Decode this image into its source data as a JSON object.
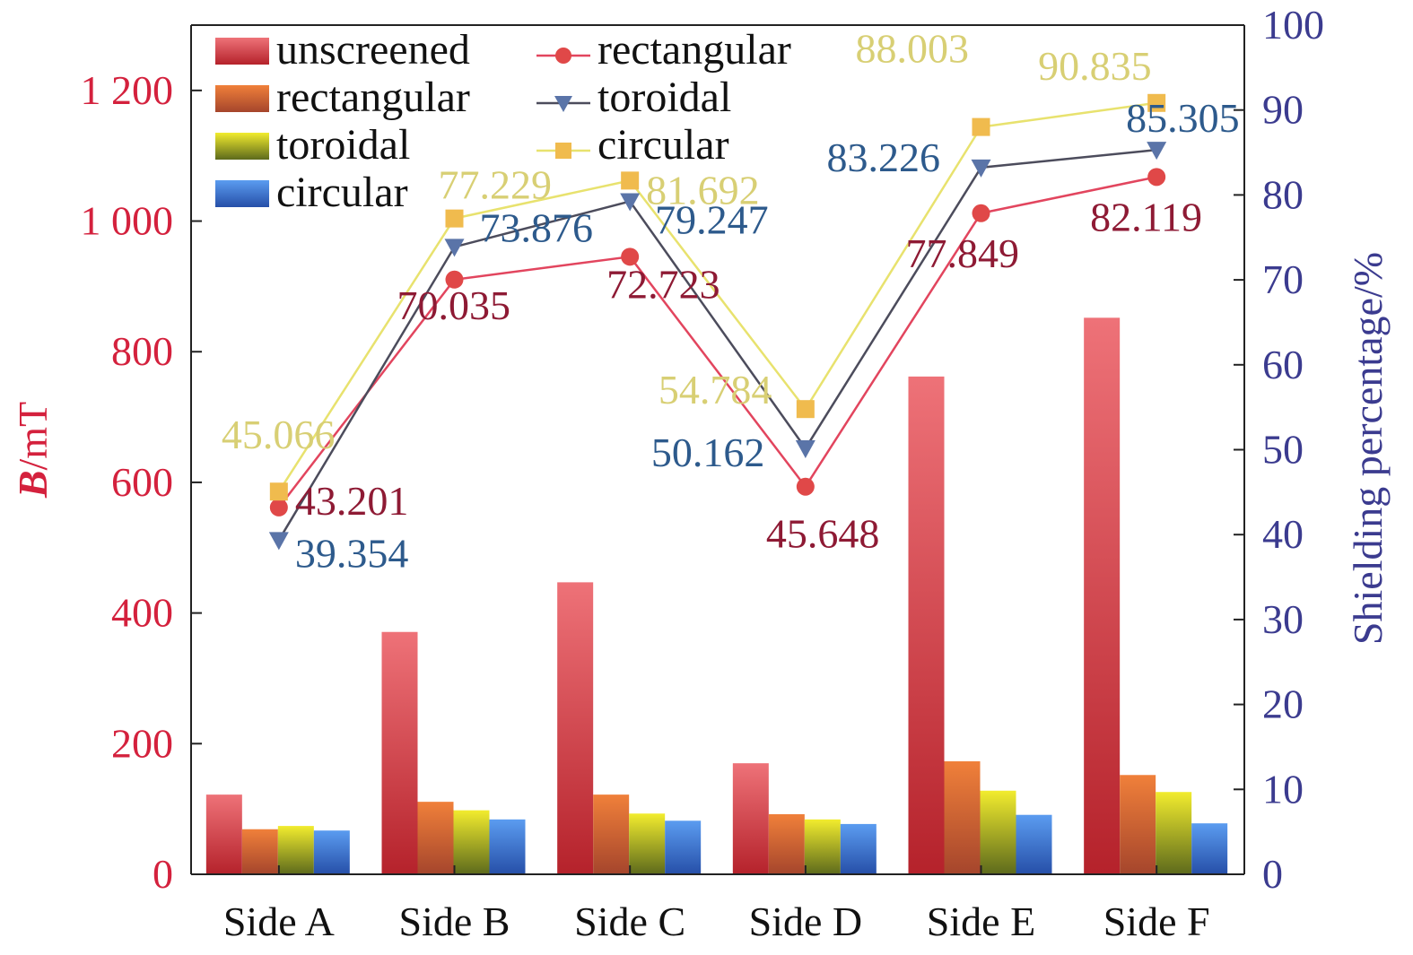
{
  "chart_data": {
    "type": "bar+line",
    "categories": [
      "Side A",
      "Side B",
      "Side C",
      "Side D",
      "Side E",
      "Side F"
    ],
    "y_left": {
      "label_bold": "B",
      "label_rest": "/mT",
      "ylim": [
        0,
        1300
      ],
      "ticks": [
        0,
        200,
        400,
        600,
        800,
        1000,
        1200
      ],
      "tick_labels": [
        "0",
        "200",
        "400",
        "600",
        "800",
        "1 000",
        "1 200"
      ],
      "color": "#d4213d"
    },
    "y_right": {
      "label": "Shielding percentage/%",
      "ylim": [
        0,
        100
      ],
      "ticks": [
        0,
        10,
        20,
        30,
        40,
        50,
        60,
        70,
        80,
        90,
        100
      ],
      "tick_labels": [
        "0",
        "10",
        "20",
        "30",
        "40",
        "50",
        "60",
        "70",
        "80",
        "90",
        "100"
      ],
      "color": "#3b3b8f"
    },
    "bar_series": [
      {
        "name": "unscreened",
        "values": [
          122,
          371,
          447,
          170,
          762,
          852
        ],
        "color_top": "#ee7278",
        "color_bottom": "#b5222b"
      },
      {
        "name": "rectangular",
        "values": [
          69,
          111,
          122,
          92,
          173,
          152
        ],
        "color_top": "#f0803a",
        "color_bottom": "#a5452c"
      },
      {
        "name": "toroidal",
        "values": [
          74,
          98,
          93,
          84,
          128,
          126
        ],
        "color_top": "#f2ec2e",
        "color_bottom": "#5d6a1c"
      },
      {
        "name": "circular",
        "values": [
          67,
          84,
          82,
          77,
          91,
          78
        ],
        "color_top": "#5b9cf0",
        "color_bottom": "#264fa8"
      }
    ],
    "line_series": [
      {
        "name": "rectangular",
        "marker": "circle",
        "values": [
          43.201,
          70.035,
          72.723,
          45.648,
          77.849,
          82.119
        ],
        "labels": [
          "43.201",
          "70.035",
          "72.723",
          "45.648",
          "77.849",
          "82.119"
        ],
        "line_color": "#e2455e",
        "marker_color": "#e04848",
        "label_color": "#8e1a34"
      },
      {
        "name": "toroidal",
        "marker": "triangle-down",
        "values": [
          39.354,
          73.876,
          79.247,
          50.162,
          83.226,
          85.305
        ],
        "labels": [
          "39.354",
          "73.876",
          "79.247",
          "50.162",
          "83.226",
          "85.305"
        ],
        "line_color": "#4c4c5c",
        "marker_color": "#5a74a8",
        "label_color": "#2d5a8c"
      },
      {
        "name": "circular",
        "marker": "square",
        "values": [
          45.066,
          77.229,
          81.692,
          54.784,
          88.003,
          90.835
        ],
        "labels": [
          "45.066",
          "77.229",
          "81.692",
          "54.784",
          "88.003",
          "90.835"
        ],
        "line_color": "#e8e26e",
        "marker_color": "#f0bb4e",
        "label_color": "#d8cf74"
      }
    ],
    "legend_position": "top-left"
  }
}
